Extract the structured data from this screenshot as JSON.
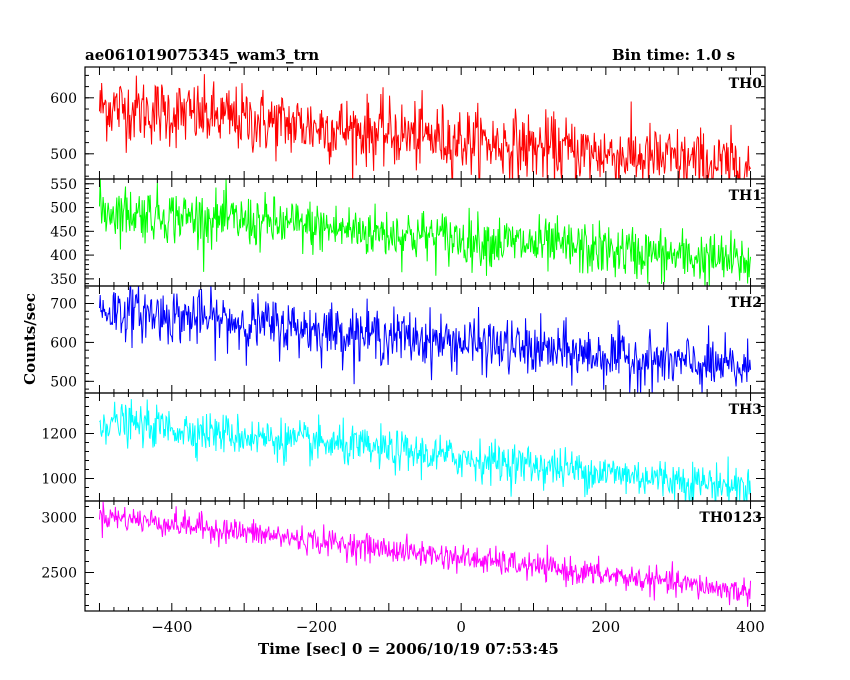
{
  "header": {
    "title": "ae061019075345_wam3_trn",
    "bin_time": "Bin time: 1.0 s"
  },
  "axes": {
    "xlabel": "Time [sec] 0 = 2006/10/19 07:53:45",
    "ylabel": "Counts/sec"
  },
  "chart_data": {
    "type": "line",
    "xlim": [
      -520,
      420
    ],
    "x_start": -500,
    "x_end": 400,
    "x_ticks": [
      -400,
      -200,
      0,
      200,
      400
    ],
    "x_tick_labels": [
      "−400",
      "−200",
      "0",
      "200",
      "400"
    ],
    "grid": false,
    "series": [
      {
        "name": "TH0",
        "color": "#ff0000",
        "ylim": [
          455,
          655
        ],
        "yticks": [
          500,
          600
        ],
        "ytick_labels": [
          "500",
          "600"
        ],
        "mean_start": 585,
        "mean_end": 475,
        "noise": 30
      },
      {
        "name": "TH1",
        "color": "#00ff00",
        "ylim": [
          335,
          560
        ],
        "yticks": [
          350,
          400,
          450,
          500,
          550
        ],
        "ytick_labels": [
          "350",
          "400",
          "450",
          "500",
          "550"
        ],
        "mean_start": 495,
        "mean_end": 385,
        "noise": 28
      },
      {
        "name": "TH2",
        "color": "#0000ff",
        "ylim": [
          470,
          745
        ],
        "yticks": [
          500,
          600,
          700
        ],
        "ytick_labels": [
          "500",
          "600",
          "700"
        ],
        "mean_start": 685,
        "mean_end": 530,
        "noise": 35
      },
      {
        "name": "TH3",
        "color": "#00ffff",
        "ylim": [
          900,
          1380
        ],
        "yticks": [
          1000,
          1200
        ],
        "ytick_labels": [
          "1000",
          "1200"
        ],
        "mean_start": 1255,
        "mean_end": 960,
        "noise": 45
      },
      {
        "name": "TH0123",
        "color": "#ff00ff",
        "ylim": [
          2150,
          3150
        ],
        "yticks": [
          2500,
          3000
        ],
        "ytick_labels": [
          "2500",
          "3000"
        ],
        "mean_start": 3020,
        "mean_end": 2320,
        "noise": 60
      }
    ]
  }
}
